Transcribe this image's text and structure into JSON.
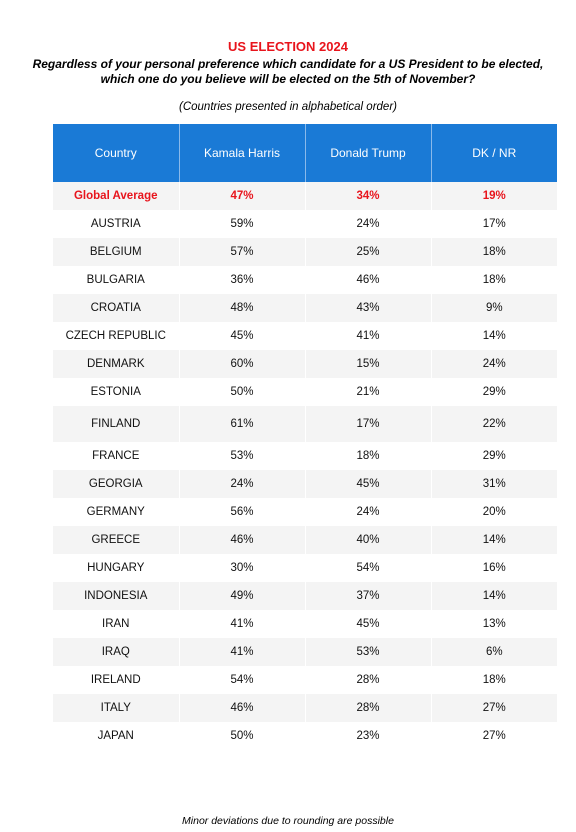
{
  "title": "US ELECTION 2024",
  "question_line1": "Regardless of your personal preference which candidate for a US President to be elected,",
  "question_line2": "which one do you believe will be elected on the 5th of November?",
  "note": "(Countries presented in alphabetical order)",
  "columns": [
    "Country",
    "Kamala Harris",
    "Donald Trump",
    "DK / NR"
  ],
  "global_row": {
    "country": "Global Average",
    "harris": "47%",
    "trump": "34%",
    "dknr": "19%"
  },
  "rows": [
    {
      "country": "AUSTRIA",
      "harris": "59%",
      "trump": "24%",
      "dknr": "17%"
    },
    {
      "country": "BELGIUM",
      "harris": "57%",
      "trump": "25%",
      "dknr": "18%"
    },
    {
      "country": "BULGARIA",
      "harris": "36%",
      "trump": "46%",
      "dknr": "18%"
    },
    {
      "country": "CROATIA",
      "harris": "48%",
      "trump": "43%",
      "dknr": "9%"
    },
    {
      "country": "CZECH REPUBLIC",
      "harris": "45%",
      "trump": "41%",
      "dknr": "14%"
    },
    {
      "country": "DENMARK",
      "harris": "60%",
      "trump": "15%",
      "dknr": "24%"
    },
    {
      "country": "ESTONIA",
      "harris": "50%",
      "trump": "21%",
      "dknr": "29%"
    },
    {
      "country": "FINLAND",
      "harris": "61%",
      "trump": "17%",
      "dknr": "22%"
    },
    {
      "country": "FRANCE",
      "harris": "53%",
      "trump": "18%",
      "dknr": "29%"
    },
    {
      "country": "GEORGIA",
      "harris": "24%",
      "trump": "45%",
      "dknr": "31%"
    },
    {
      "country": "GERMANY",
      "harris": "56%",
      "trump": "24%",
      "dknr": "20%"
    },
    {
      "country": "GREECE",
      "harris": "46%",
      "trump": "40%",
      "dknr": "14%"
    },
    {
      "country": "HUNGARY",
      "harris": "30%",
      "trump": "54%",
      "dknr": "16%"
    },
    {
      "country": "INDONESIA",
      "harris": "49%",
      "trump": "37%",
      "dknr": "14%"
    },
    {
      "country": "IRAN",
      "harris": "41%",
      "trump": "45%",
      "dknr": "13%"
    },
    {
      "country": "IRAQ",
      "harris": "41%",
      "trump": "53%",
      "dknr": "6%"
    },
    {
      "country": "IRELAND",
      "harris": "54%",
      "trump": "28%",
      "dknr": "18%"
    },
    {
      "country": "ITALY",
      "harris": "46%",
      "trump": "28%",
      "dknr": "27%"
    },
    {
      "country": "JAPAN",
      "harris": "50%",
      "trump": "23%",
      "dknr": "27%"
    }
  ],
  "footer": "Minor deviations due to rounding are possible"
}
